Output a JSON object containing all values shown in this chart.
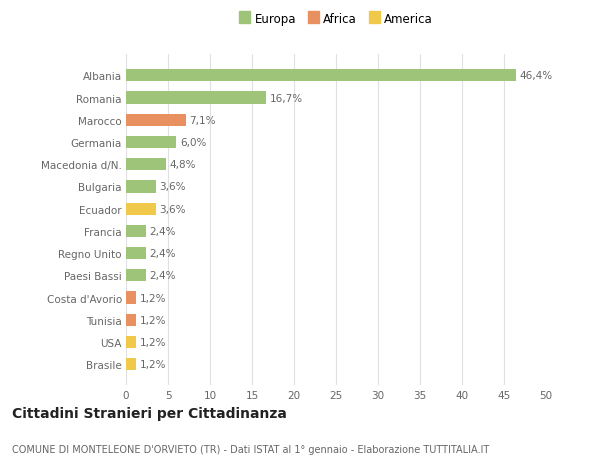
{
  "categories": [
    "Brasile",
    "USA",
    "Tunisia",
    "Costa d'Avorio",
    "Paesi Bassi",
    "Regno Unito",
    "Francia",
    "Ecuador",
    "Bulgaria",
    "Macedonia d/N.",
    "Germania",
    "Marocco",
    "Romania",
    "Albania"
  ],
  "values": [
    1.2,
    1.2,
    1.2,
    1.2,
    2.4,
    2.4,
    2.4,
    3.6,
    3.6,
    4.8,
    6.0,
    7.1,
    16.7,
    46.4
  ],
  "labels": [
    "1,2%",
    "1,2%",
    "1,2%",
    "1,2%",
    "2,4%",
    "2,4%",
    "2,4%",
    "3,6%",
    "3,6%",
    "4,8%",
    "6,0%",
    "7,1%",
    "16,7%",
    "46,4%"
  ],
  "colors": [
    "#f0c84a",
    "#f0c84a",
    "#e89060",
    "#e89060",
    "#9ec47a",
    "#9ec47a",
    "#9ec47a",
    "#f0c84a",
    "#9ec47a",
    "#9ec47a",
    "#9ec47a",
    "#e89060",
    "#9ec47a",
    "#9ec47a"
  ],
  "legend": [
    {
      "label": "Europa",
      "color": "#9ec47a"
    },
    {
      "label": "Africa",
      "color": "#e89060"
    },
    {
      "label": "America",
      "color": "#f0c84a"
    }
  ],
  "title": "Cittadini Stranieri per Cittadinanza",
  "subtitle": "COMUNE DI MONTELEONE D'ORVIETO (TR) - Dati ISTAT al 1° gennaio - Elaborazione TUTTITALIA.IT",
  "xlim": [
    0,
    50
  ],
  "xticks": [
    0,
    5,
    10,
    15,
    20,
    25,
    30,
    35,
    40,
    45,
    50
  ],
  "bg_color": "#ffffff",
  "grid_color": "#e0e0e0",
  "bar_height": 0.55,
  "label_fontsize": 7.5,
  "tick_fontsize": 7.5,
  "title_fontsize": 10,
  "subtitle_fontsize": 7
}
